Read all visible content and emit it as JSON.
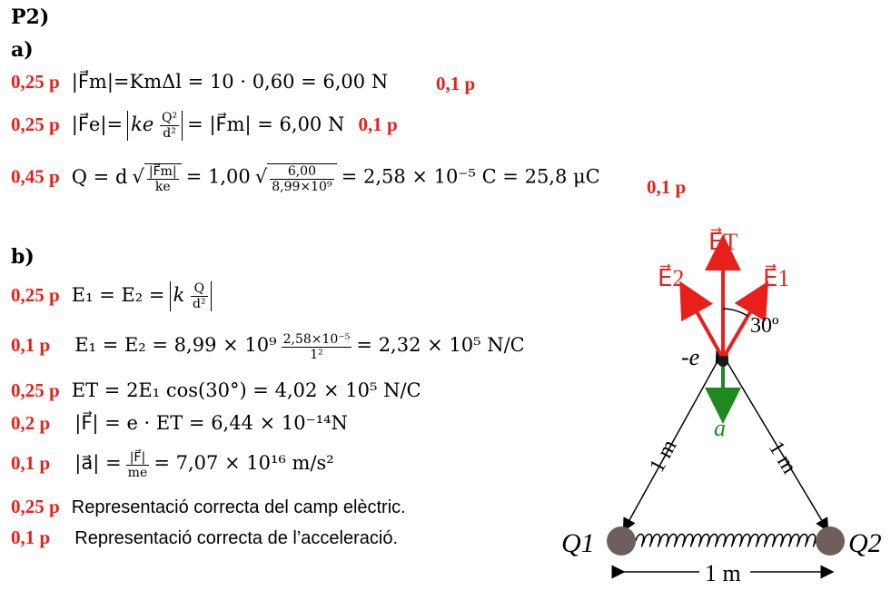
{
  "header": {
    "problem": "P2)",
    "part_a": "a)",
    "part_b": "b)"
  },
  "a": {
    "line1": {
      "points": "0,25 p",
      "lhs": "|F⃗m|=KmΔl = 10 · 0,60 = 6,00 N",
      "extra": "0,1 p"
    },
    "line2": {
      "points": "0,25 p",
      "lhs_pre": "|F⃗e|=",
      "k": "ke",
      "num": "Q²",
      "den": "d²",
      "rhs": "= |F⃗m| = 6,00 N",
      "extra": "0,1 p"
    },
    "line3": {
      "points": "0,45 p",
      "lhs": "Q = d",
      "num1": "|F⃗m|",
      "den1": "ke",
      "mid": "= 1,00",
      "num2": "6,00",
      "den2": "8,99×10⁹",
      "rhs": "= 2,58 × 10⁻⁵ C = 25,8 μC",
      "extra": "0,1 p"
    }
  },
  "b": {
    "line1": {
      "points": "0,25 p",
      "lhs": "E₁ = E₂ =",
      "k": "k",
      "num": "Q",
      "den": "d²"
    },
    "line2": {
      "points": "0,1 p",
      "lhs": "E₁ = E₂ = 8,99 × 10⁹",
      "num": "2,58×10⁻⁵",
      "den": "1²",
      "rhs": "= 2,32 × 10⁵ N/C"
    },
    "line3": {
      "points": "0,25 p",
      "eq": "ET = 2E₁ cos(30°) = 4,02 × 10⁵ N/C"
    },
    "line4": {
      "points": "0,2 p",
      "eq": "|F⃗| = e · ET = 6,44 × 10⁻¹⁴N"
    },
    "line5": {
      "points": "0,1 p",
      "lhs": "|a⃗| =",
      "num": "|F⃗|",
      "den": "me",
      "rhs": "= 7,07 × 10¹⁶ m/s²"
    },
    "line6": {
      "points": "0,25 p",
      "text": "Representació correcta del camp elèctric."
    },
    "line7": {
      "points": "0,1 p",
      "text": "Representació correcta de l’acceleració."
    }
  },
  "diagram": {
    "charge_e": "-e",
    "field_total": "E⃗T",
    "field_1": "E⃗1",
    "field_2": "E⃗2",
    "angle": "30º",
    "accel": "a⃗",
    "side_left": "1 m",
    "side_right": "1 m",
    "bottom": "1 m",
    "q1": "Q1",
    "q2": "Q2",
    "colors": {
      "red": "#e8201b",
      "green": "#1e8a1e",
      "gray": "#6e5f5a"
    }
  }
}
